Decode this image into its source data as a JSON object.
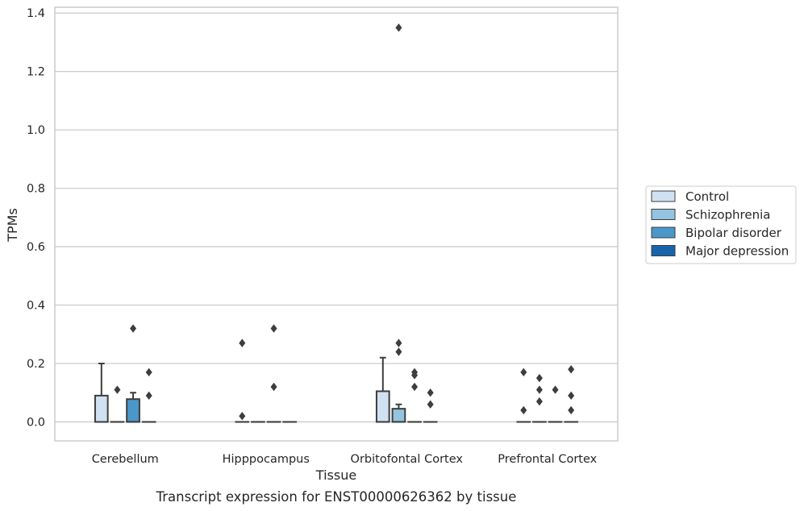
{
  "chart_data": {
    "type": "box",
    "caption": "Transcript expression for ENST00000626362 by tissue",
    "xlabel": "Tissue",
    "ylabel": "TPMs",
    "ylim": [
      -0.065,
      1.42
    ],
    "yticks": [
      0.0,
      0.2,
      0.4,
      0.6,
      0.8,
      1.0,
      1.2,
      1.4
    ],
    "ytick_labels": [
      "0.0",
      "0.2",
      "0.4",
      "0.6",
      "0.8",
      "1.0",
      "1.2",
      "1.4"
    ],
    "grid": true,
    "legend_position": "right",
    "categories": [
      "Cerebellum",
      "Hipppocampus",
      "Orbitofontal Cortex",
      "Prefrontal Cortex"
    ],
    "series": [
      {
        "name": "Control",
        "color": "#d0e1f2",
        "boxes": [
          {
            "q1": 0.0,
            "median": 0.0,
            "q3": 0.09,
            "whisker_low": 0.0,
            "whisker_high": 0.2,
            "outliers": []
          },
          {
            "q1": 0.0,
            "median": 0.0,
            "q3": 0.0,
            "whisker_low": 0.0,
            "whisker_high": 0.0,
            "outliers": [
              0.27,
              0.02
            ]
          },
          {
            "q1": 0.0,
            "median": 0.0,
            "q3": 0.105,
            "whisker_low": 0.0,
            "whisker_high": 0.22,
            "outliers": []
          },
          {
            "q1": 0.0,
            "median": 0.0,
            "q3": 0.0,
            "whisker_low": 0.0,
            "whisker_high": 0.0,
            "outliers": [
              0.17,
              0.04
            ]
          }
        ]
      },
      {
        "name": "Schizophrenia",
        "color": "#94c4df",
        "boxes": [
          {
            "q1": 0.0,
            "median": 0.0,
            "q3": 0.0,
            "whisker_low": 0.0,
            "whisker_high": 0.0,
            "outliers": [
              0.11
            ]
          },
          {
            "q1": 0.0,
            "median": 0.0,
            "q3": 0.0,
            "whisker_low": 0.0,
            "whisker_high": 0.0,
            "outliers": []
          },
          {
            "q1": 0.0,
            "median": 0.0,
            "q3": 0.045,
            "whisker_low": 0.0,
            "whisker_high": 0.06,
            "outliers": [
              1.35,
              0.27,
              0.24
            ]
          },
          {
            "q1": 0.0,
            "median": 0.0,
            "q3": 0.0,
            "whisker_low": 0.0,
            "whisker_high": 0.0,
            "outliers": [
              0.15,
              0.11,
              0.07
            ]
          }
        ]
      },
      {
        "name": "Bipolar disorder",
        "color": "#4a98c9",
        "boxes": [
          {
            "q1": 0.0,
            "median": 0.0,
            "q3": 0.078,
            "whisker_low": 0.0,
            "whisker_high": 0.1,
            "outliers": [
              0.32
            ]
          },
          {
            "q1": 0.0,
            "median": 0.0,
            "q3": 0.0,
            "whisker_low": 0.0,
            "whisker_high": 0.0,
            "outliers": [
              0.32,
              0.12
            ]
          },
          {
            "q1": 0.0,
            "median": 0.0,
            "q3": 0.0,
            "whisker_low": 0.0,
            "whisker_high": 0.0,
            "outliers": [
              0.17,
              0.16,
              0.12
            ]
          },
          {
            "q1": 0.0,
            "median": 0.0,
            "q3": 0.0,
            "whisker_low": 0.0,
            "whisker_high": 0.0,
            "outliers": [
              0.11
            ]
          }
        ]
      },
      {
        "name": "Major depression",
        "color": "#1764ab",
        "boxes": [
          {
            "q1": 0.0,
            "median": 0.0,
            "q3": 0.0,
            "whisker_low": 0.0,
            "whisker_high": 0.0,
            "outliers": [
              0.17,
              0.09
            ]
          },
          {
            "q1": 0.0,
            "median": 0.0,
            "q3": 0.0,
            "whisker_low": 0.0,
            "whisker_high": 0.0,
            "outliers": []
          },
          {
            "q1": 0.0,
            "median": 0.0,
            "q3": 0.0,
            "whisker_low": 0.0,
            "whisker_high": 0.0,
            "outliers": [
              0.1,
              0.06
            ]
          },
          {
            "q1": 0.0,
            "median": 0.0,
            "q3": 0.0,
            "whisker_low": 0.0,
            "whisker_high": 0.0,
            "outliers": [
              0.18,
              0.09,
              0.04
            ]
          }
        ]
      }
    ],
    "colors": {
      "box_edge": "#3d3d3d",
      "grid": "#cccccc",
      "frame": "#cccccc",
      "legend_border": "#cccccc"
    }
  }
}
